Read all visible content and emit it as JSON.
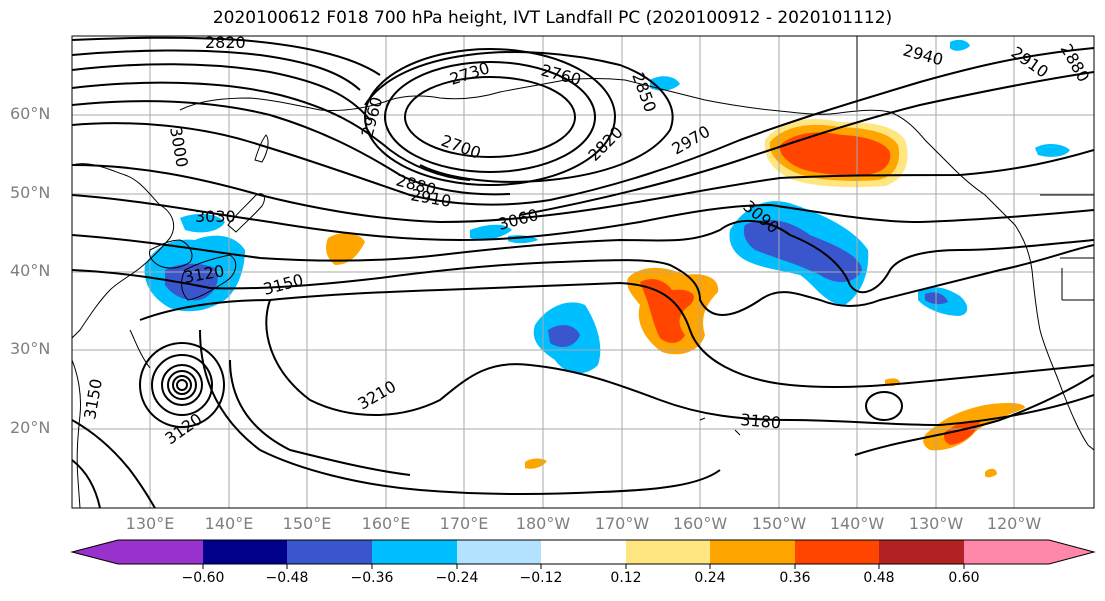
{
  "title": "2020100612 F018 700 hPa height, IVT Landfall PC (2020100912 - 2020101112)",
  "lat_labels": [
    "60°N",
    "50°N",
    "40°N",
    "30°N",
    "20°N"
  ],
  "lon_labels": [
    "130°E",
    "140°E",
    "150°E",
    "160°E",
    "170°E",
    "180°W",
    "170°W",
    "160°W",
    "150°W",
    "140°W",
    "130°W",
    "120°W"
  ],
  "contour_labels": [
    "2820",
    "2730",
    "2760",
    "2850",
    "2940",
    "2910",
    "2880",
    "2960",
    "2700",
    "2820",
    "2880",
    "2910",
    "2970",
    "3000",
    "3030",
    "3060",
    "3090",
    "3120",
    "3150",
    "3210",
    "3180",
    "3150",
    "3120"
  ],
  "colorbar": {
    "ticks": [
      "−0.60",
      "−0.48",
      "−0.36",
      "−0.24",
      "−0.12",
      "0.12",
      "0.24",
      "0.36",
      "0.48",
      "0.60"
    ],
    "colors": [
      "#9932cc",
      "#00008b",
      "#3a56cc",
      "#00bfff",
      "#b3e2ff",
      "#ffffff",
      "#ffe680",
      "#ffa500",
      "#ff4500",
      "#b22222",
      "#ff88aa"
    ]
  },
  "palette": {
    "blue_dark": "#3a56cc",
    "blue_mid": "#00bfff",
    "blue_light": "#b3e2ff",
    "yellow": "#ffe680",
    "orange": "#ffa500",
    "red": "#ff4500"
  }
}
